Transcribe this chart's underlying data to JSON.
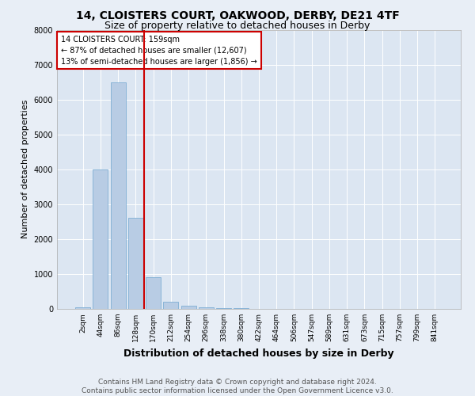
{
  "title1": "14, CLOISTERS COURT, OAKWOOD, DERBY, DE21 4TF",
  "title2": "Size of property relative to detached houses in Derby",
  "xlabel": "Distribution of detached houses by size in Derby",
  "ylabel": "Number of detached properties",
  "footnote1": "Contains HM Land Registry data © Crown copyright and database right 2024.",
  "footnote2": "Contains public sector information licensed under the Open Government Licence v3.0.",
  "annotation_line1": "14 CLOISTERS COURT: 159sqm",
  "annotation_line2": "← 87% of detached houses are smaller (12,607)",
  "annotation_line3": "13% of semi-detached houses are larger (1,856) →",
  "bar_labels": [
    "2sqm",
    "44sqm",
    "86sqm",
    "128sqm",
    "170sqm",
    "212sqm",
    "254sqm",
    "296sqm",
    "338sqm",
    "380sqm",
    "422sqm",
    "464sqm",
    "506sqm",
    "547sqm",
    "589sqm",
    "631sqm",
    "673sqm",
    "715sqm",
    "757sqm",
    "799sqm",
    "841sqm"
  ],
  "bar_values": [
    50,
    4000,
    6500,
    2600,
    900,
    200,
    100,
    50,
    30,
    20,
    10,
    5,
    3,
    2,
    1,
    1,
    0,
    0,
    0,
    0,
    0
  ],
  "bar_color": "#b8cce4",
  "bar_edge_color": "#7fafd4",
  "vline_color": "#cc0000",
  "vline_pos": 3.5,
  "ylim": [
    0,
    8000
  ],
  "bg_color": "#e8eef6",
  "plot_bg_color": "#dce6f2",
  "grid_color": "#ffffff",
  "annotation_box_edge_color": "#cc0000",
  "title1_fontsize": 10,
  "title2_fontsize": 9,
  "ylabel_fontsize": 8,
  "xlabel_fontsize": 9,
  "tick_fontsize": 6.5,
  "footnote_fontsize": 6.5
}
